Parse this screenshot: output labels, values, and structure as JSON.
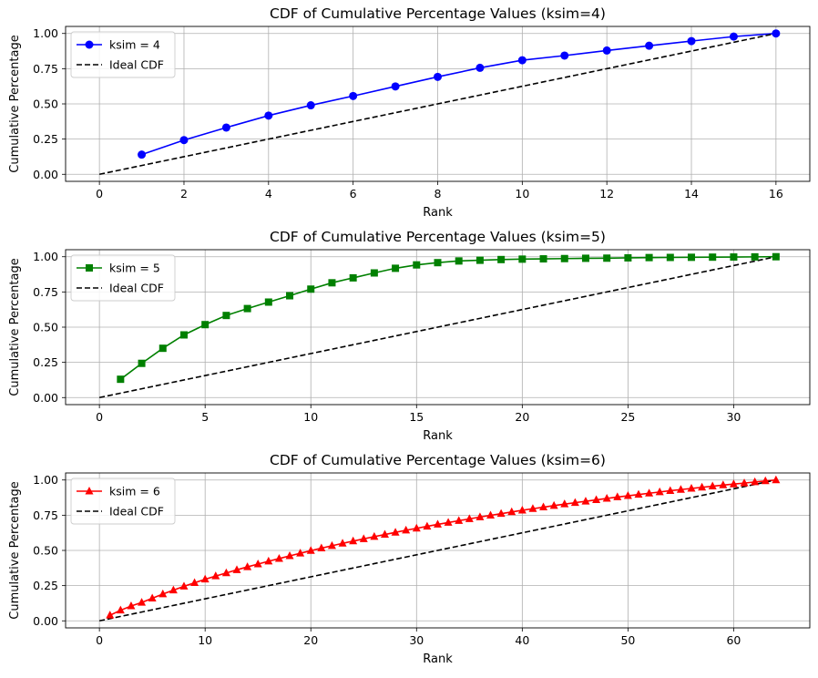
{
  "chart_data": [
    {
      "type": "line",
      "title": "CDF of Cumulative Percentage Values (ksim=4)",
      "xlabel": "Rank",
      "ylabel": "Cumulative Percentage",
      "xlim": [
        -0.8,
        16.8
      ],
      "ylim": [
        -0.05,
        1.05
      ],
      "xticks": [
        0,
        2,
        4,
        6,
        8,
        10,
        12,
        14,
        16
      ],
      "xtick_labels": [
        "0",
        "2",
        "4",
        "6",
        "8",
        "10",
        "12",
        "14",
        "16"
      ],
      "yticks": [
        0,
        0.25,
        0.5,
        0.75,
        1.0
      ],
      "ytick_labels": [
        "0.00",
        "0.25",
        "0.50",
        "0.75",
        "1.00"
      ],
      "grid": true,
      "legend_position": "top-left",
      "series": [
        {
          "name": "ksim = 4",
          "color": "#0000ff",
          "marker": "circle",
          "style": "solid",
          "x": [
            1,
            2,
            3,
            4,
            5,
            6,
            7,
            8,
            9,
            10,
            11,
            12,
            13,
            14,
            15,
            16
          ],
          "y": [
            0.14,
            0.243,
            0.332,
            0.417,
            0.49,
            0.556,
            0.624,
            0.692,
            0.756,
            0.81,
            0.843,
            0.879,
            0.913,
            0.946,
            0.978,
            1.0
          ]
        },
        {
          "name": "Ideal CDF",
          "color": "#000000",
          "marker": "none",
          "style": "dashed",
          "x": [
            0,
            16
          ],
          "y": [
            0,
            1.0
          ]
        }
      ]
    },
    {
      "type": "line",
      "title": "CDF of Cumulative Percentage Values (ksim=5)",
      "xlabel": "Rank",
      "ylabel": "Cumulative Percentage",
      "xlim": [
        -1.6,
        33.6
      ],
      "ylim": [
        -0.05,
        1.05
      ],
      "xticks": [
        0,
        5,
        10,
        15,
        20,
        25,
        30
      ],
      "xtick_labels": [
        "0",
        "5",
        "10",
        "15",
        "20",
        "25",
        "30"
      ],
      "yticks": [
        0,
        0.25,
        0.5,
        0.75,
        1.0
      ],
      "ytick_labels": [
        "0.00",
        "0.25",
        "0.50",
        "0.75",
        "1.00"
      ],
      "grid": true,
      "legend_position": "top-left",
      "series": [
        {
          "name": "ksim = 5",
          "color": "#008000",
          "marker": "square",
          "style": "solid",
          "x": [
            1,
            2,
            3,
            4,
            5,
            6,
            7,
            8,
            9,
            10,
            11,
            12,
            13,
            14,
            15,
            16,
            17,
            18,
            19,
            20,
            21,
            22,
            23,
            24,
            25,
            26,
            27,
            28,
            29,
            30,
            31,
            32
          ],
          "y": [
            0.13,
            0.243,
            0.35,
            0.445,
            0.518,
            0.583,
            0.632,
            0.678,
            0.723,
            0.77,
            0.815,
            0.85,
            0.885,
            0.918,
            0.942,
            0.958,
            0.97,
            0.975,
            0.98,
            0.983,
            0.985,
            0.987,
            0.989,
            0.99,
            0.992,
            0.994,
            0.995,
            0.996,
            0.997,
            0.998,
            0.999,
            1.0
          ]
        },
        {
          "name": "Ideal CDF",
          "color": "#000000",
          "marker": "none",
          "style": "dashed",
          "x": [
            0,
            32
          ],
          "y": [
            0,
            1.0
          ]
        }
      ]
    },
    {
      "type": "line",
      "title": "CDF of Cumulative Percentage Values (ksim=6)",
      "xlabel": "Rank",
      "ylabel": "Cumulative Percentage",
      "xlim": [
        -3.2,
        67.2
      ],
      "ylim": [
        -0.05,
        1.05
      ],
      "xticks": [
        0,
        10,
        20,
        30,
        40,
        50,
        60
      ],
      "xtick_labels": [
        "0",
        "10",
        "20",
        "30",
        "40",
        "50",
        "60"
      ],
      "yticks": [
        0,
        0.25,
        0.5,
        0.75,
        1.0
      ],
      "ytick_labels": [
        "0.00",
        "0.25",
        "0.50",
        "0.75",
        "1.00"
      ],
      "grid": true,
      "legend_position": "top-left",
      "series": [
        {
          "name": "ksim = 6",
          "color": "#ff0000",
          "marker": "triangle",
          "style": "solid",
          "x": [
            1,
            2,
            3,
            4,
            5,
            6,
            7,
            8,
            9,
            10,
            11,
            12,
            13,
            14,
            15,
            16,
            17,
            18,
            19,
            20,
            21,
            22,
            23,
            24,
            25,
            26,
            27,
            28,
            29,
            30,
            31,
            32,
            33,
            34,
            35,
            36,
            37,
            38,
            39,
            40,
            41,
            42,
            43,
            44,
            45,
            46,
            47,
            48,
            49,
            50,
            51,
            52,
            53,
            54,
            55,
            56,
            57,
            58,
            59,
            60,
            61,
            62,
            63,
            64
          ],
          "y": [
            0.04,
            0.075,
            0.105,
            0.13,
            0.16,
            0.19,
            0.218,
            0.245,
            0.27,
            0.295,
            0.318,
            0.34,
            0.362,
            0.383,
            0.403,
            0.423,
            0.442,
            0.461,
            0.48,
            0.498,
            0.516,
            0.533,
            0.55,
            0.566,
            0.582,
            0.598,
            0.613,
            0.628,
            0.643,
            0.657,
            0.671,
            0.685,
            0.698,
            0.711,
            0.724,
            0.737,
            0.749,
            0.761,
            0.773,
            0.785,
            0.796,
            0.807,
            0.818,
            0.829,
            0.839,
            0.849,
            0.859,
            0.869,
            0.879,
            0.888,
            0.897,
            0.906,
            0.915,
            0.924,
            0.932,
            0.94,
            0.948,
            0.956,
            0.964,
            0.971,
            0.978,
            0.986,
            0.993,
            1.0
          ]
        },
        {
          "name": "Ideal CDF",
          "color": "#000000",
          "marker": "none",
          "style": "dashed",
          "x": [
            0,
            64
          ],
          "y": [
            0,
            1.0
          ]
        }
      ]
    }
  ]
}
